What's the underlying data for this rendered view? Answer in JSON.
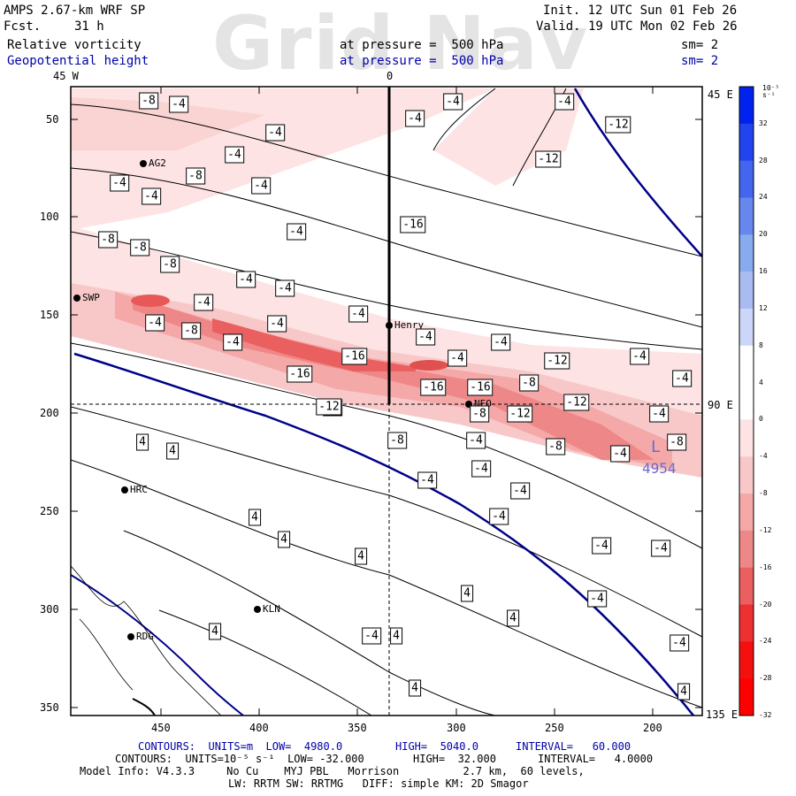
{
  "header": {
    "model": "AMPS 2.67-km WRF SP",
    "fcst_label": "Fcst.",
    "fcst_value": "31 h",
    "init": "Init. 12 UTC Sun 01 Feb 26",
    "valid": "Valid. 19 UTC Mon 02 Feb 26",
    "field1": "Relative vorticity",
    "field2": "Geopotential height",
    "pressure1": "at pressure =  500 hPa",
    "pressure2": "at pressure =  500 hPa",
    "sm1": "sm= 2",
    "sm2": "sm= 2",
    "watermark": "Grid Nav"
  },
  "map": {
    "lon_top_left": "45 W",
    "lon_top_mid": "0",
    "lon_right_top": "45 E",
    "lon_right_mid": "90 E",
    "lon_right_bottom": "135 E",
    "y_ticks": [
      "50",
      "100",
      "150",
      "200",
      "250",
      "300",
      "350"
    ],
    "x_ticks": [
      "450",
      "400",
      "350",
      "300",
      "250",
      "200"
    ],
    "stations": [
      {
        "id": "AG2",
        "label": "AG2"
      },
      {
        "id": "SWP",
        "label": "SWP"
      },
      {
        "id": "Henry",
        "label": "Henry"
      },
      {
        "id": "NEO",
        "label": "NEO"
      },
      {
        "id": "HRC",
        "label": "HRC"
      },
      {
        "id": "KLN",
        "label": "KLN"
      },
      {
        "id": "RDG",
        "label": "RDG"
      }
    ],
    "low_center": {
      "symbol": "L",
      "value": "4954"
    },
    "contour_labels": [
      "-8",
      "-4",
      "-4",
      "-4",
      "-8",
      "-4",
      "-4",
      "-4",
      "-8",
      "-8",
      "-8",
      "-4",
      "-4",
      "-4",
      "-4",
      "-4",
      "-8",
      "-4",
      "-4",
      "-4",
      "-16",
      "-16",
      "-8",
      "-16",
      "-4",
      "-4",
      "-16",
      "-4",
      "-12",
      "-4",
      "-4",
      "-4",
      "-4",
      "-4",
      "-12",
      "-16",
      "-12",
      "-12",
      "-8",
      "-12",
      "-8",
      "-4",
      "-8",
      "-4",
      "-8",
      "-12",
      "-4",
      "-8",
      "-4",
      "-4",
      "-4",
      "-4",
      "-4",
      "-4",
      "-4",
      "-4",
      "4",
      "4",
      "4",
      "4",
      "4",
      "4",
      "4",
      "4",
      "4",
      "4",
      "-4",
      "4",
      "4"
    ]
  },
  "colorbar": {
    "unit": "10⁻⁵ s⁻¹",
    "labels": [
      "32",
      "28",
      "24",
      "20",
      "16",
      "12",
      "8",
      "4",
      "0",
      "-4",
      "-8",
      "-12",
      "-16",
      "-20",
      "-24",
      "-28",
      "-32"
    ],
    "colors": [
      "#0022ee",
      "#2244ee",
      "#4466ee",
      "#6688ee",
      "#88aaee",
      "#aabbf2",
      "#ccd6f8",
      "#ffffff",
      "#ffffff",
      "#fde3e3",
      "#f8c8c8",
      "#f4a8a8",
      "#ee8888",
      "#ea6060",
      "#ee3030",
      "#f51010",
      "#ff0000"
    ]
  },
  "footer": {
    "line1_a": "CONTOURS:  UNITS=m  LOW=  4980.0",
    "line1_b": "HIGH=  5040.0",
    "line1_c": "INTERVAL=   60.000",
    "line2_a": "CONTOURS:  UNITS=10⁻⁵ s⁻¹  LOW= -32.000",
    "line2_b": "HIGH=  32.000",
    "line2_c": "INTERVAL=   4.0000",
    "line3": "Model Info: V4.3.3     No Cu    MYJ PBL   Morrison          2.7 km,  60 levels,",
    "line4": "LW: RRTM SW: RRTMG   DIFF: simple KM: 2D Smagor"
  }
}
